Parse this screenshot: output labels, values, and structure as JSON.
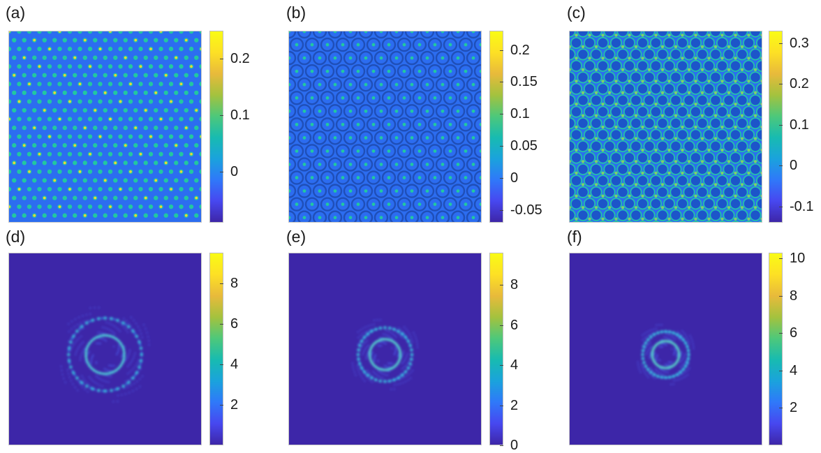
{
  "colors": {
    "background_low": "#3d26a8",
    "pattern_base": "#2c6df0",
    "pattern_dot": "#22c7a0",
    "ring": "#2aa9ee",
    "colormap": [
      "#3e26a8",
      "#4748f0",
      "#2f79f9",
      "#1aa3dc",
      "#18bbb0",
      "#4ec87a",
      "#a4c23e",
      "#e8ba3b",
      "#fde025",
      "#f9fb15"
    ]
  },
  "panels": [
    {
      "id": "a",
      "label": "(a)",
      "kind": "pattern",
      "motif": "hex-quasicrystal",
      "ticks": [
        {
          "value": 0.2,
          "text": "0.2"
        },
        {
          "value": 0.1,
          "text": "0.1"
        },
        {
          "value": 0,
          "text": "0"
        }
      ],
      "cmin": -0.09,
      "cmax": 0.25
    },
    {
      "id": "b",
      "label": "(b)",
      "kind": "pattern",
      "motif": "network",
      "ticks": [
        {
          "value": 0.2,
          "text": "0.2"
        },
        {
          "value": 0.15,
          "text": "0.15"
        },
        {
          "value": 0.1,
          "text": "0.1"
        },
        {
          "value": 0.05,
          "text": "0.05"
        },
        {
          "value": 0,
          "text": "0"
        },
        {
          "value": -0.05,
          "text": "-0.05"
        }
      ],
      "cmin": -0.07,
      "cmax": 0.23
    },
    {
      "id": "c",
      "label": "(c)",
      "kind": "pattern",
      "motif": "honeycomb",
      "ticks": [
        {
          "value": 0.3,
          "text": "0.3"
        },
        {
          "value": 0.2,
          "text": "0.2"
        },
        {
          "value": 0.1,
          "text": "0.1"
        },
        {
          "value": 0,
          "text": "0"
        },
        {
          "value": -0.1,
          "text": "-0.1"
        }
      ],
      "cmin": -0.14,
      "cmax": 0.33
    },
    {
      "id": "d",
      "label": "(d)",
      "kind": "spectrum",
      "ring_inner": 0.1,
      "ring_outer": 0.19,
      "ticks": [
        {
          "value": 8,
          "text": "8"
        },
        {
          "value": 6,
          "text": "6"
        },
        {
          "value": 4,
          "text": "4"
        },
        {
          "value": 2,
          "text": "2"
        }
      ],
      "cmin": 0,
      "cmax": 9.5
    },
    {
      "id": "e",
      "label": "(e)",
      "kind": "spectrum",
      "ring_inner": 0.08,
      "ring_outer": 0.14,
      "ticks": [
        {
          "value": 8,
          "text": "8"
        },
        {
          "value": 6,
          "text": "6"
        },
        {
          "value": 4,
          "text": "4"
        },
        {
          "value": 2,
          "text": "2"
        },
        {
          "value": 0,
          "text": "0"
        }
      ],
      "cmin": 0,
      "cmax": 9.6
    },
    {
      "id": "f",
      "label": "(f)",
      "kind": "spectrum",
      "ring_inner": 0.07,
      "ring_outer": 0.12,
      "ticks": [
        {
          "value": 10,
          "text": "10"
        },
        {
          "value": 8,
          "text": "8"
        },
        {
          "value": 6,
          "text": "6"
        },
        {
          "value": 4,
          "text": "4"
        },
        {
          "value": 2,
          "text": "2"
        }
      ],
      "cmin": 0,
      "cmax": 10.3
    }
  ]
}
